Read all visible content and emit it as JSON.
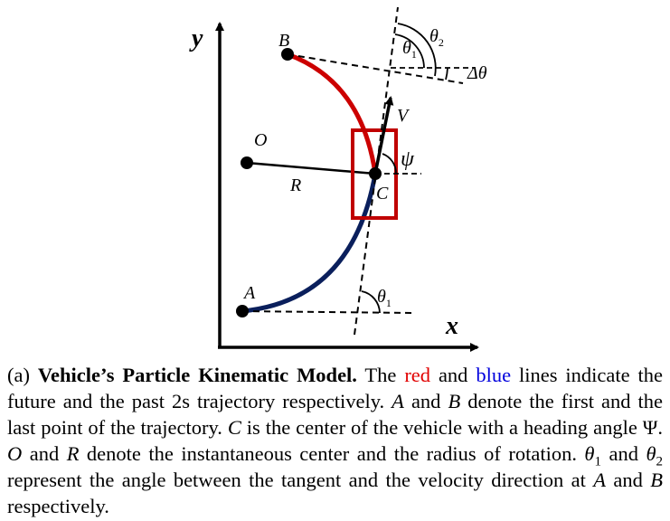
{
  "figure": {
    "axis_labels": {
      "x": "x",
      "y": "y"
    },
    "point_labels": {
      "A": "A",
      "B": "B",
      "C": "C",
      "O": "O"
    },
    "segment_labels": {
      "R": "R",
      "V": "V",
      "psi": "ψ"
    },
    "angle_labels": {
      "theta1_at_A": "θ",
      "theta1_at_A_sub": "1",
      "theta1_at_B": "θ",
      "theta1_at_B_sub": "1",
      "theta2_at_B": "θ",
      "theta2_at_B_sub": "2",
      "delta_theta": "Δθ"
    },
    "colors": {
      "future_trajectory": "#cc0000",
      "past_trajectory": "#0a1f5c",
      "vehicle_box": "#c00000",
      "lines": "#000000"
    }
  },
  "caption": {
    "prefix": "(a) ",
    "title": "Vehicle’s Particle Kinematic Model.",
    "t1": " The ",
    "red_word": "red",
    "t2": " and ",
    "blue_word": "blue",
    "t3": " lines indicate the future and the past 2s trajectory respectively. ",
    "A": "A",
    "t4": " and ",
    "B": "B",
    "t5": " denote the first and the last point of the trajectory. ",
    "C": "C",
    "t6": " is the center of the vehicle with a heading angle Ψ. ",
    "O": "O",
    "t7": " and ",
    "R": "R",
    "t8": " denote the instantaneous center and the radius of rotation. ",
    "theta": "θ",
    "sub1": "1",
    "t9": " and ",
    "theta_b": "θ",
    "sub2": "2",
    "t10": " represent the angle between the tangent and the velocity direction at ",
    "A2": "A",
    "t11": " and ",
    "B2": "B",
    "t12": " respectively."
  }
}
